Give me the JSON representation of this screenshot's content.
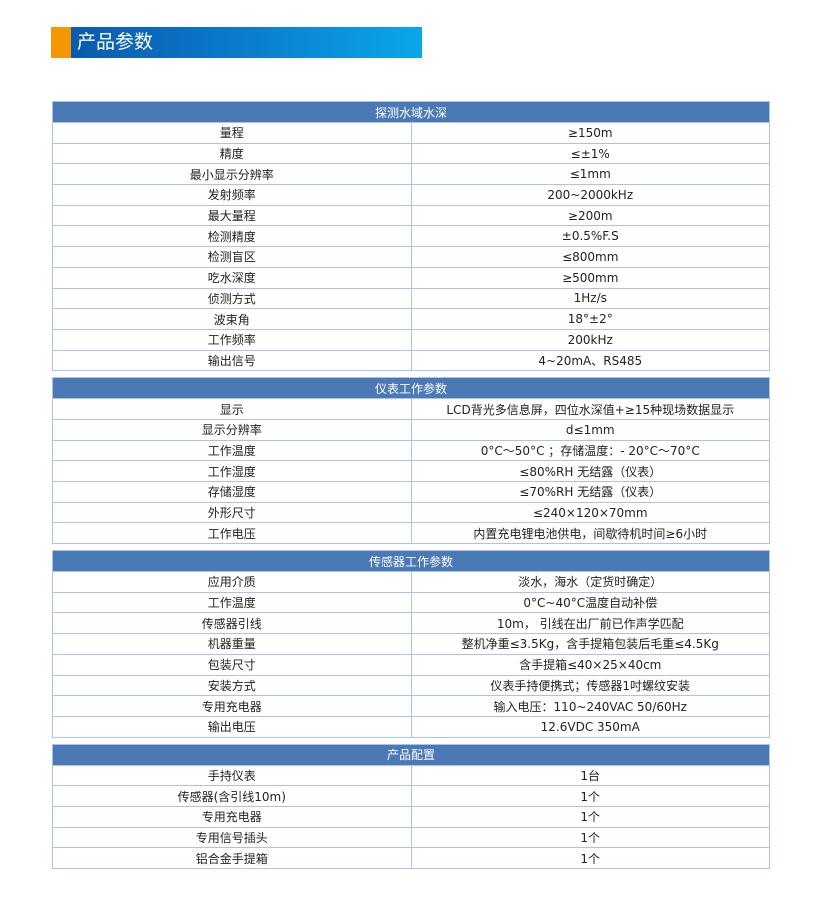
{
  "page_title": "产品参数",
  "colors": {
    "accent": "#f39800",
    "banner_blue": "#0a7ccc",
    "header_bg": "#4b79b5",
    "border": "#a9c4e8"
  },
  "sections": [
    {
      "title": "探测水域水深",
      "rows": [
        [
          "量程",
          "≥150m"
        ],
        [
          "精度",
          "≤±1%"
        ],
        [
          "最小显示分辨率",
          "≤1mm"
        ],
        [
          "发射频率",
          "200~2000kHz"
        ],
        [
          "最大量程",
          "≥200m"
        ],
        [
          "检测精度",
          "±0.5%F.S"
        ],
        [
          "检测盲区",
          "≤800mm"
        ],
        [
          "吃水深度",
          "≥500mm"
        ],
        [
          "侦测方式",
          "1Hz/s"
        ],
        [
          "波束角",
          "18°±2°"
        ],
        [
          "工作频率",
          "200kHz"
        ],
        [
          "输出信号",
          "4~20mA、RS485"
        ]
      ]
    },
    {
      "title": "仪表工作参数",
      "rows": [
        [
          "显示",
          "LCD背光多信息屏，四位水深值+≥15种现场数据显示"
        ],
        [
          "显示分辨率",
          "d≤1mm"
        ],
        [
          "工作温度",
          "0°C～50°C ；存储温度：- 20°C～70°C"
        ],
        [
          "工作湿度",
          "≤80%RH 无结露（仪表）"
        ],
        [
          "存储湿度",
          "≤70%RH 无结露（仪表）"
        ],
        [
          "外形尺寸",
          "≤240×120×70mm"
        ],
        [
          "工作电压",
          "内置充电锂电池供电，间歇待机时间≥6小时"
        ]
      ]
    },
    {
      "title": "传感器工作参数",
      "rows": [
        [
          "应用介质",
          "淡水，海水（定货时确定）"
        ],
        [
          "工作温度",
          "0°C~40°C温度自动补偿"
        ],
        [
          "传感器引线",
          "10m， 引线在出厂前已作声学匹配"
        ],
        [
          "机器重量",
          "整机净重≤3.5Kg，含手提箱包装后毛重≤4.5Kg"
        ],
        [
          "包装尺寸",
          "含手提箱≤40×25×40cm"
        ],
        [
          "安装方式",
          "仪表手持便携式；传感器1吋螺纹安装"
        ],
        [
          "专用充电器",
          "输入电压：110~240VAC 50/60Hz"
        ],
        [
          "输出电压",
          "12.6VDC 350mA"
        ]
      ]
    },
    {
      "title": "产品配置",
      "rows": [
        [
          "手持仪表",
          "1台"
        ],
        [
          "传感器(含引线10m)",
          "1个"
        ],
        [
          "专用充电器",
          "1个"
        ],
        [
          "专用信号插头",
          "1个"
        ],
        [
          "铝合金手提箱",
          "1个"
        ]
      ]
    }
  ]
}
